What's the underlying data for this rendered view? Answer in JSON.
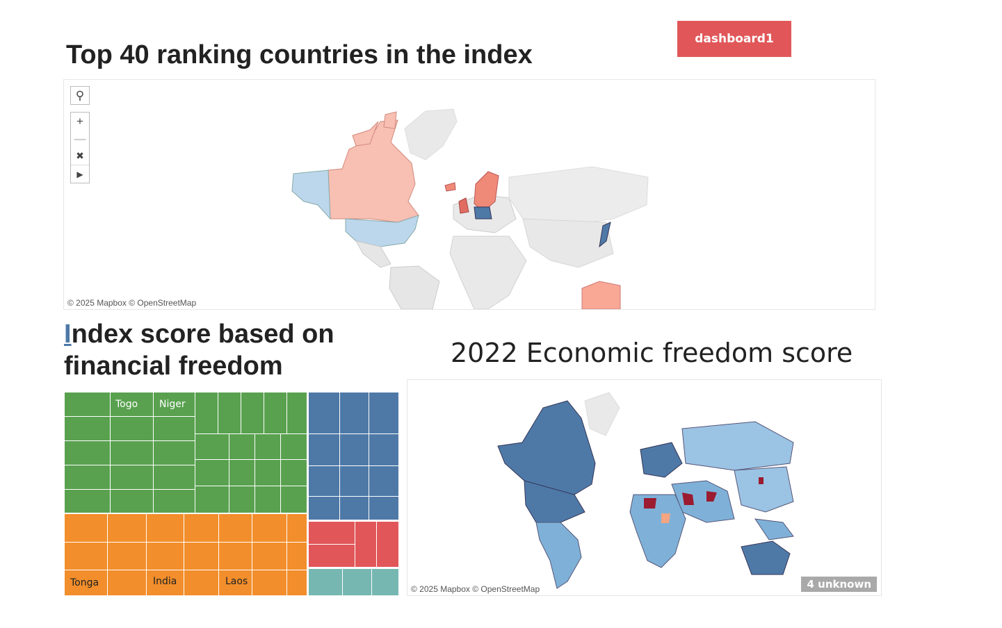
{
  "header": {
    "dashboard_button_label": "dashboard1"
  },
  "map_top": {
    "title": "Top 40 ranking countries in the index",
    "credit": "© 2025 Mapbox © OpenStreetMap",
    "controls": [
      "search-icon",
      "zoom-in-icon",
      "zoom-out-icon",
      "pin-clear-icon",
      "play-icon"
    ]
  },
  "treemap": {
    "title": "Index score based on financial freedom",
    "title_first_letter": "I",
    "title_rest": "ndex score based on financial freedom",
    "labels": [
      "Togo",
      "Niger",
      "Tonga",
      "India",
      "Laos"
    ],
    "colors": {
      "green": "#59a14f",
      "orange": "#f28e2b",
      "blue": "#4e79a7",
      "red": "#e15759",
      "teal": "#76b7b2"
    }
  },
  "map_bottom": {
    "title": "2022 Economic freedom score",
    "credit": "© 2025 Mapbox © OpenStreetMap",
    "unknown_badge": "4 unknown"
  }
}
